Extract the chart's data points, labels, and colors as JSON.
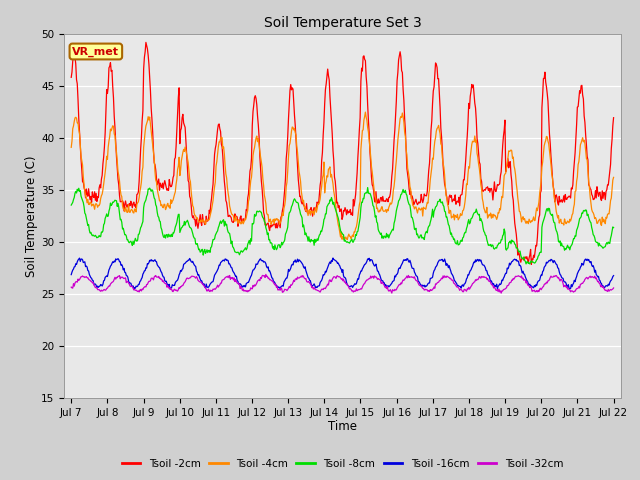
{
  "title": "Soil Temperature Set 3",
  "xlabel": "Time",
  "ylabel": "Soil Temperature (C)",
  "ylim": [
    15,
    50
  ],
  "annotation": "VR_met",
  "colors": {
    "Tsoil -2cm": "#ff0000",
    "Tsoil -4cm": "#ff8800",
    "Tsoil -8cm": "#00dd00",
    "Tsoil -16cm": "#0000dd",
    "Tsoil -32cm": "#cc00cc"
  },
  "legend_labels": [
    "Tsoil -2cm",
    "Tsoil -4cm",
    "Tsoil -8cm",
    "Tsoil -16cm",
    "Tsoil -32cm"
  ],
  "x_tick_labels": [
    "Jul 7",
    "Jul 8",
    "Jul 9",
    "Jul 10",
    "Jul 11",
    "Jul 12",
    "Jul 13",
    "Jul 14",
    "Jul 15",
    "Jul 16",
    "Jul 17",
    "Jul 18",
    "Jul 19",
    "Jul 20",
    "Jul 21",
    "Jul 22"
  ],
  "fig_bg": "#d0d0d0",
  "ax_bg": "#e8e8e8",
  "grid_color": "#ffffff",
  "n_days": 15,
  "pts_per_day": 48
}
